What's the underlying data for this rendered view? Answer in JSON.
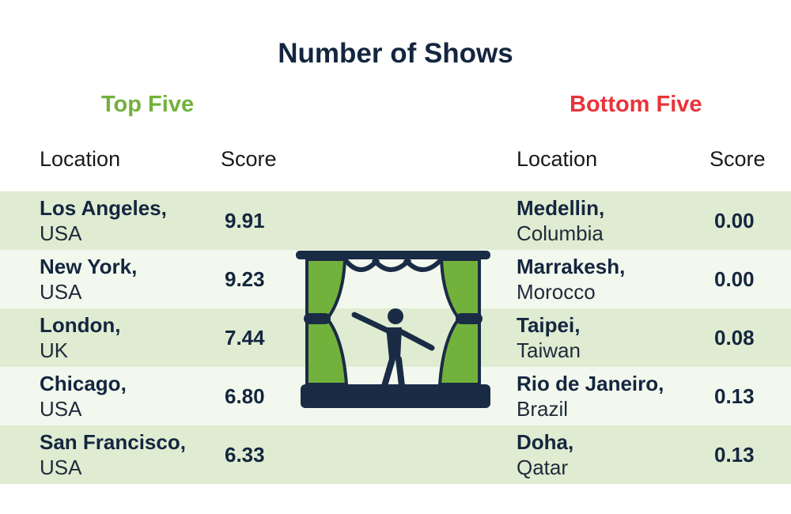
{
  "title": "Number of Shows",
  "top": {
    "heading": "Top Five",
    "col_location": "Location",
    "col_score": "Score",
    "rows": [
      {
        "city": "Los Angeles,",
        "country": "USA",
        "score": "9.91"
      },
      {
        "city": "New York,",
        "country": "USA",
        "score": "9.23"
      },
      {
        "city": "London,",
        "country": "UK",
        "score": "7.44"
      },
      {
        "city": "Chicago,",
        "country": "USA",
        "score": "6.80"
      },
      {
        "city": "San Francisco,",
        "country": "USA",
        "score": "6.33"
      }
    ]
  },
  "bottom": {
    "heading": "Bottom Five",
    "col_location": "Location",
    "col_score": "Score",
    "rows": [
      {
        "city": "Medellin,",
        "country": "Columbia",
        "score": "0.00"
      },
      {
        "city": "Marrakesh,",
        "country": "Morocco",
        "score": "0.00"
      },
      {
        "city": "Taipei,",
        "country": "Taiwan",
        "score": "0.08"
      },
      {
        "city": "Rio de Janeiro,",
        "country": "Brazil",
        "score": "0.13"
      },
      {
        "city": "Doha,",
        "country": "Qatar",
        "score": "0.13"
      }
    ]
  },
  "colors": {
    "top_heading": "#72b13b",
    "bottom_heading": "#e8343a",
    "text_dark": "#14263f",
    "band_shade": "#e0ecd2",
    "band_light": "#f3f8ee",
    "curtain_green": "#72b13b"
  },
  "icon": "theater-stage-icon"
}
